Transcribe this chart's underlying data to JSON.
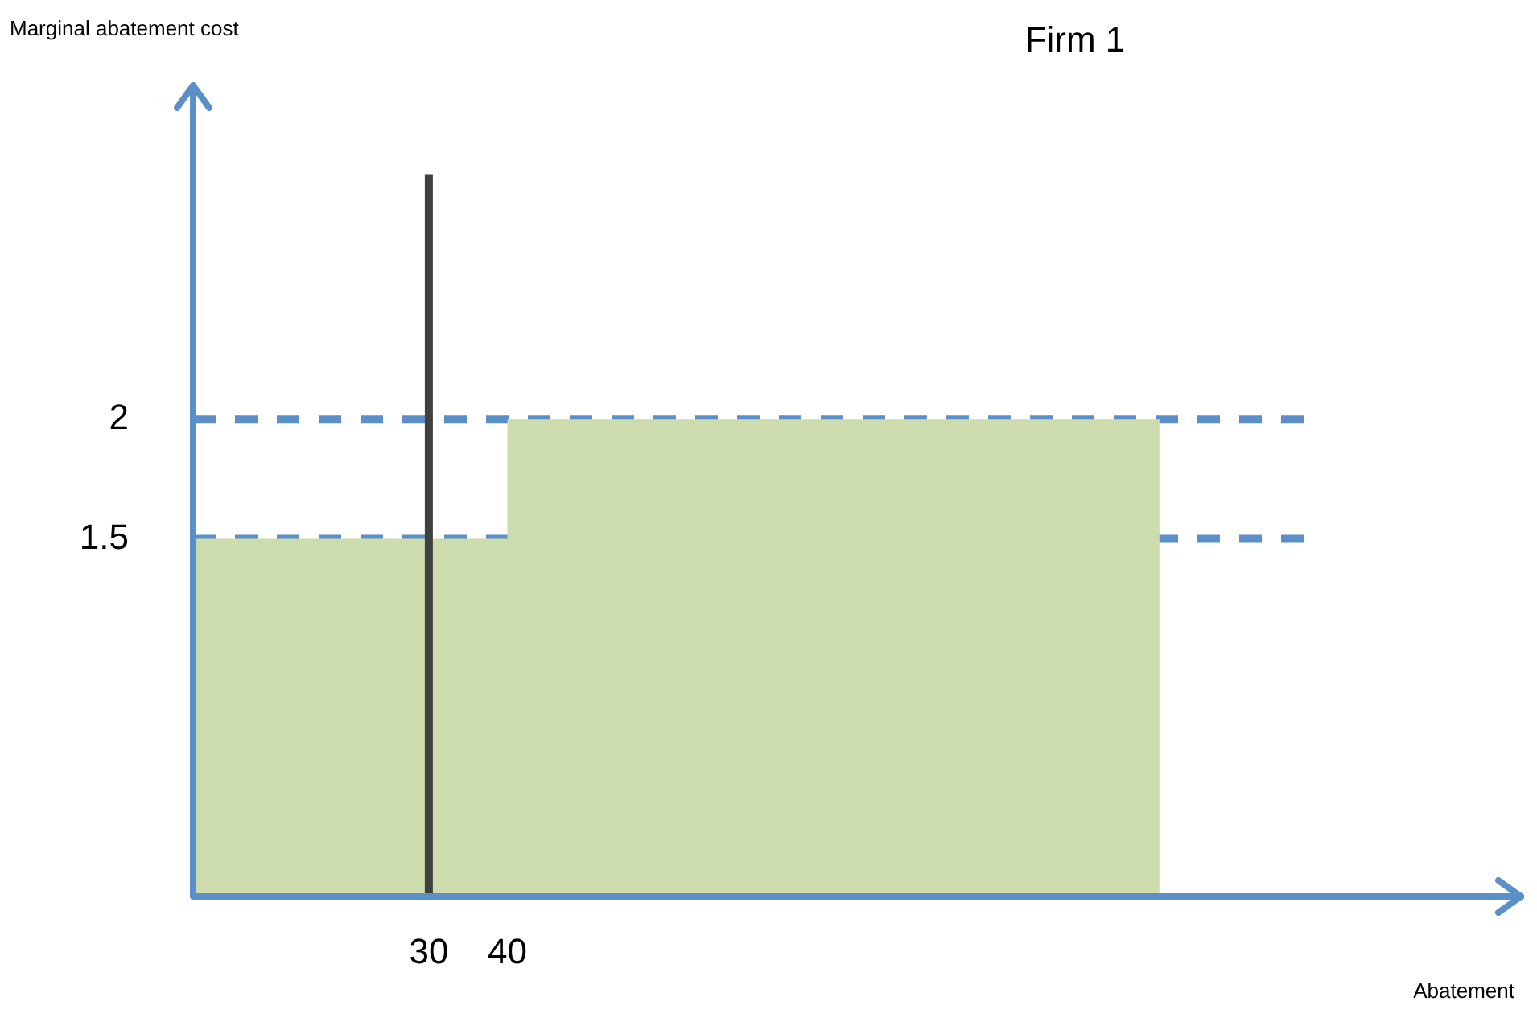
{
  "chart_data": {
    "type": "area",
    "title": "Firm 1",
    "xlabel": "Abatement",
    "ylabel": "Marginal abatement cost",
    "series": [
      {
        "color": "#cddcad",
        "x": [
          0,
          40,
          40,
          123
        ],
        "values": [
          1.5,
          1.5,
          2,
          2
        ]
      }
    ],
    "xlim": [
      0,
      169
    ],
    "xticks": [
      30,
      40
    ],
    "ylim": [
      0,
      3.4
    ],
    "yticks": [
      1.5,
      2
    ],
    "grid": false,
    "legend": false,
    "ref_lines": [
      {
        "axis": "y",
        "value": 2,
        "color": "#5b8fc9",
        "line_style": "dashed"
      },
      {
        "axis": "y",
        "value": 1.5,
        "color": "#5b8fc9",
        "line_style": "dashed"
      },
      {
        "axis": "x",
        "value": 30,
        "color": "#404040",
        "line_style": "solid"
      }
    ]
  }
}
